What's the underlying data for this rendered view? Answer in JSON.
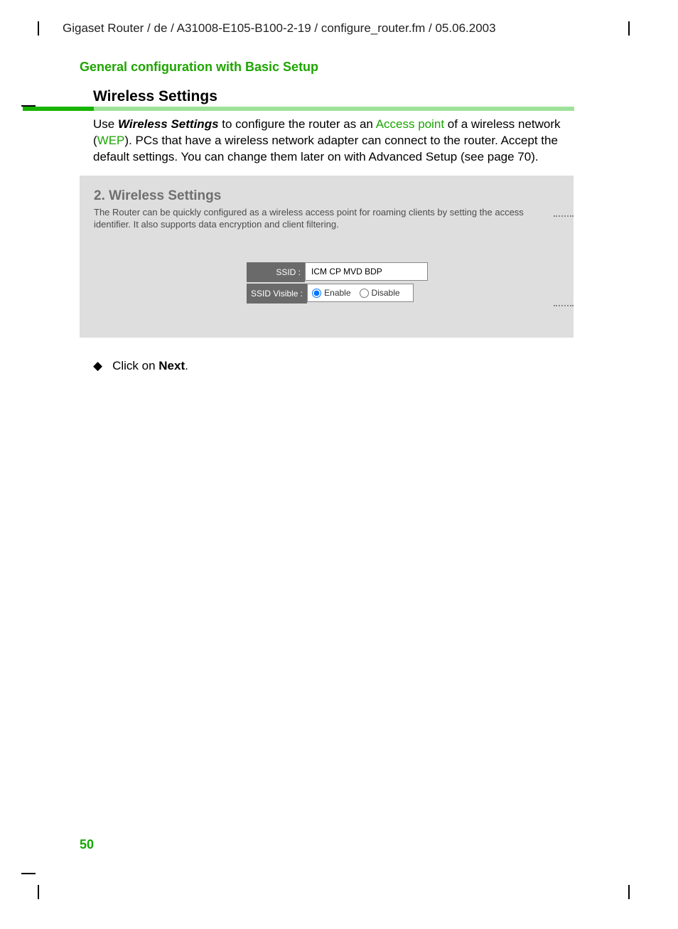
{
  "header_path": "Gigaset Router / de / A31008-E105-B100-2-19 / configure_router.fm / 05.06.2003",
  "section_title": "General configuration with Basic Setup",
  "heading": "Wireless Settings",
  "body": {
    "pre": "Use ",
    "bold1": "Wireless Settings",
    "mid1": " to configure the router as an ",
    "link1": "Access point",
    "mid2": " of a wireless network (",
    "link2": "WEP",
    "post": "). PCs that have a wireless network adapter can connect to the router. Accept the default settings. You can change them later on with Advanced Setup (see page 70)."
  },
  "panel": {
    "title": "2. Wireless Settings",
    "desc": "The Router can be quickly configured as a wireless access point for roaming clients by setting the access identifier. It also supports data encryption and client filtering.",
    "ssid_label": "SSID :",
    "ssid_value": "ICM CP MVD BDP",
    "visible_label": "SSID Visible :",
    "enable": "Enable",
    "disable": "Disable"
  },
  "bullet": {
    "glyph": "◆",
    "text_pre": "Click on ",
    "bold": "Next",
    "text_post": "."
  },
  "page_number": "50"
}
